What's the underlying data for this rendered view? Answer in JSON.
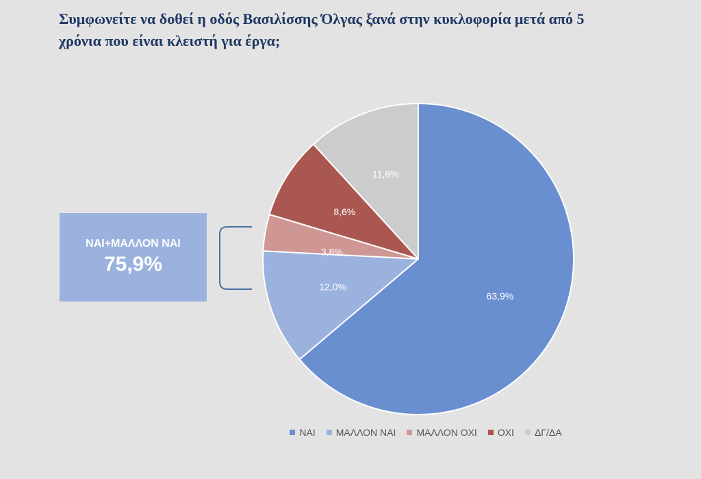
{
  "chart_data": {
    "type": "pie",
    "title": "Συμφωνείτε να δοθεί η οδός Βασιλίσσης Όλγας ξανά στην κυκλοφορία μετά από 5 χρόνια που είναι κλειστή για έργα;",
    "title_lines": [
      "Συμφωνείτε να δοθεί η οδός Βασιλίσσης Όλγας ξανά στην κυκλοφορία μετά από 5",
      "χρόνια που είναι κλειστή για έργα;"
    ],
    "slices": [
      {
        "label": "ΝΑΙ",
        "value": 63.9,
        "display": "63,9%",
        "color": "#6a8fd1"
      },
      {
        "label": "ΜΑΛΛΟΝ ΝΑΙ",
        "value": 12.0,
        "display": "12,0%",
        "color": "#9ab2dd"
      },
      {
        "label": "ΜΑΛΛΟΝ ΟΧΙ",
        "value": 3.8,
        "display": "3,8%",
        "color": "#cf9794"
      },
      {
        "label": "ΟΧΙ",
        "value": 8.6,
        "display": "8,6%",
        "color": "#ab5751"
      },
      {
        "label": "ΔΓ/ΔΑ",
        "value": 11.8,
        "display": "11,8%",
        "color": "#cccccc"
      }
    ],
    "legend_position": "bottom",
    "callout": {
      "label": "ΝΑΙ+ΜΑΛΛΟΝ ΝΑΙ",
      "value": "75,9%",
      "color": "#9ab2dd",
      "bracket_color": "#4a6fa5"
    }
  }
}
